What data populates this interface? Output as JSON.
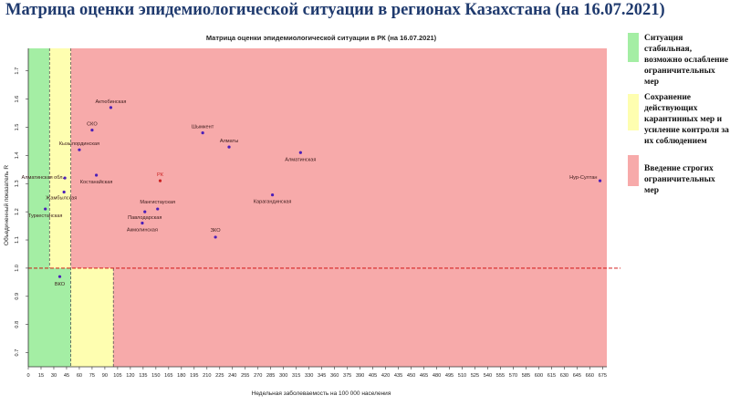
{
  "slide_title": "Матрица оценки эпидемиологической ситуации в регионах Казахстана (на 16.07.2021)",
  "legend": [
    {
      "text": "Ситуация стабильная, возможно ослабление ограничительных мер",
      "color": "#a4eea4"
    },
    {
      "text": "Сохранение действующих карантинных мер и усиление контроля за их соблюдением",
      "color": "#fefeb0"
    },
    {
      "text": "Введение строгих ограничительных мер",
      "color": "#f7aaaa"
    }
  ],
  "chart_data": {
    "type": "scatter",
    "title": "Матрица оценки эпидемиологической ситуации в РК (на 16.07.2021)",
    "xlabel": "Недельная заболеваемость на 100 000 населения",
    "ylabel": "Объединенный показатель R",
    "xlim": [
      0,
      680
    ],
    "ylim": [
      0.65,
      1.78
    ],
    "x_ticks": [
      0,
      15,
      30,
      45,
      60,
      75,
      90,
      105,
      120,
      135,
      150,
      165,
      180,
      195,
      210,
      225,
      240,
      255,
      270,
      285,
      300,
      315,
      330,
      345,
      360,
      375,
      390,
      405,
      420,
      435,
      450,
      465,
      480,
      495,
      510,
      525,
      540,
      555,
      570,
      585,
      600,
      615,
      630,
      645,
      660,
      675
    ],
    "y_ticks": [
      0.7,
      0.8,
      0.9,
      1.0,
      1.1,
      1.2,
      1.3,
      1.4,
      1.5,
      1.6,
      1.7
    ],
    "x_tick_labels": [
      "0",
      "15",
      "30",
      "45",
      "60",
      "75",
      "90",
      "105",
      "120",
      "135",
      "150",
      "165",
      "180",
      "195",
      "210",
      "225",
      "240",
      "255",
      "270",
      "285",
      "300",
      "315",
      "330",
      "345",
      "360",
      "375",
      "390",
      "405",
      "420",
      "435",
      "450",
      "465",
      "480",
      "495",
      "510",
      "525",
      "540",
      "555",
      "570",
      "585",
      "600",
      "615",
      "630",
      "645",
      "660",
      "675"
    ],
    "y_tick_labels": [
      "0.7",
      "0.8",
      "0.9",
      "1.0",
      "1.1",
      "1.2",
      "1.3",
      "1.4",
      "1.5",
      "1.6",
      "1.7"
    ],
    "zones": {
      "green_x_max": 25,
      "yellow_x_max": 50,
      "threshold_r": 1.0,
      "yellow_low_x_max": 100
    },
    "colors": {
      "green": "#a4eea4",
      "yellow": "#fefeb0",
      "red": "#f7aaaa",
      "point": "#4b1fb8",
      "highlight": "#cc2222",
      "threshold": "#cc0000"
    },
    "points": [
      {
        "label": "Актюбинская",
        "x": 97,
        "y": 1.57,
        "highlight": false
      },
      {
        "label": "СКО",
        "x": 75,
        "y": 1.49,
        "highlight": false
      },
      {
        "label": "Кызылординская",
        "x": 60,
        "y": 1.42,
        "highlight": false
      },
      {
        "label": "Шымкент",
        "x": 205,
        "y": 1.48,
        "highlight": false
      },
      {
        "label": "Алматы",
        "x": 236,
        "y": 1.43,
        "highlight": false
      },
      {
        "label": "Алматинская обл.",
        "x": 43,
        "y": 1.32,
        "highlight": false
      },
      {
        "label": "Костанайская",
        "x": 80,
        "y": 1.33,
        "highlight": false
      },
      {
        "label": "Жамбылская",
        "x": 42,
        "y": 1.27,
        "highlight": false
      },
      {
        "label": "Туркестанская",
        "x": 20,
        "y": 1.21,
        "highlight": false
      },
      {
        "label": "РК",
        "x": 155,
        "y": 1.31,
        "highlight": true
      },
      {
        "label": "Алматинская",
        "x": 320,
        "y": 1.41,
        "highlight": false
      },
      {
        "label": "Нур-Султан",
        "x": 672,
        "y": 1.31,
        "highlight": false
      },
      {
        "label": "Карагандинская",
        "x": 287,
        "y": 1.26,
        "highlight": false
      },
      {
        "label": "Мангистауская",
        "x": 152,
        "y": 1.21,
        "highlight": false
      },
      {
        "label": "Павлодарская",
        "x": 137,
        "y": 1.2,
        "highlight": false
      },
      {
        "label": "Акмолинская",
        "x": 134,
        "y": 1.16,
        "highlight": false
      },
      {
        "label": "ЗКО",
        "x": 220,
        "y": 1.11,
        "highlight": false
      },
      {
        "label": "ВКО",
        "x": 37,
        "y": 0.97,
        "highlight": false
      }
    ]
  }
}
